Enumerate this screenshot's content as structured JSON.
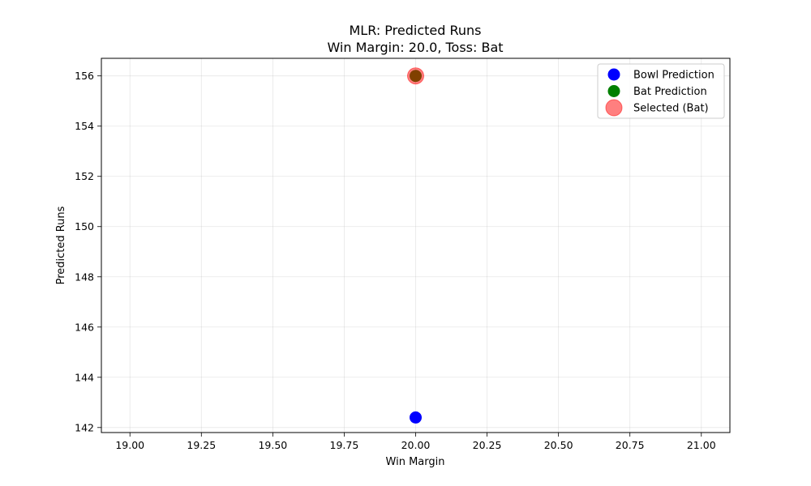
{
  "chart_data": {
    "type": "scatter",
    "title": "MLR: Predicted Runs",
    "subtitle": "Win Margin: 20.0, Toss: Bat",
    "xlabel": "Win Margin",
    "ylabel": "Predicted Runs",
    "xlim": [
      18.9,
      21.1
    ],
    "ylim": [
      141.8,
      156.7
    ],
    "x_ticks": [
      19.0,
      19.25,
      19.5,
      19.75,
      20.0,
      20.25,
      20.5,
      20.75,
      21.0
    ],
    "x_tick_labels": [
      "19.00",
      "19.25",
      "19.50",
      "19.75",
      "20.00",
      "20.25",
      "20.50",
      "20.75",
      "21.00"
    ],
    "y_ticks": [
      142,
      144,
      146,
      148,
      150,
      152,
      154,
      156
    ],
    "y_tick_labels": [
      "142",
      "144",
      "146",
      "148",
      "150",
      "152",
      "154",
      "156"
    ],
    "grid": true,
    "legend_position": "top-right",
    "series": [
      {
        "name": "Bowl Prediction",
        "color": "#0000ff",
        "alpha": 1.0,
        "marker": "small",
        "x": [
          20.0
        ],
        "y": [
          142.4
        ]
      },
      {
        "name": "Bat Prediction",
        "color": "#008000",
        "alpha": 1.0,
        "marker": "small",
        "x": [
          20.0
        ],
        "y": [
          156.0
        ]
      },
      {
        "name": "Selected (Bat)",
        "color": "#ff0000",
        "alpha": 0.5,
        "marker": "large",
        "x": [
          20.0
        ],
        "y": [
          156.0
        ]
      }
    ]
  }
}
